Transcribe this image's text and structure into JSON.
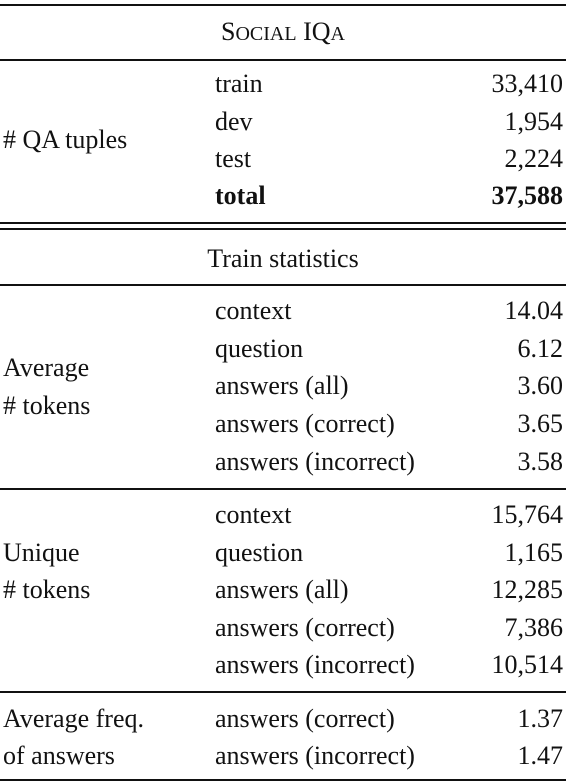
{
  "header": {
    "title_parts": [
      "S",
      "OCIAL",
      " IQ",
      "A"
    ]
  },
  "qa_tuples": {
    "label": "# QA tuples",
    "rows": [
      {
        "split": "train",
        "value": "33,410"
      },
      {
        "split": "dev",
        "value": "1,954"
      },
      {
        "split": "test",
        "value": "2,224"
      },
      {
        "split": "total",
        "value": "37,588"
      }
    ]
  },
  "train_statistics": {
    "heading": "Train statistics"
  },
  "average_tokens": {
    "label_line1": "Average",
    "label_line2": "# tokens",
    "rows": [
      {
        "field": "context",
        "value": "14.04"
      },
      {
        "field": "question",
        "value": "6.12"
      },
      {
        "field": "answers (all)",
        "value": "3.60"
      },
      {
        "field": "answers (correct)",
        "value": "3.65"
      },
      {
        "field": "answers (incorrect)",
        "value": "3.58"
      }
    ]
  },
  "unique_tokens": {
    "label_line1": "Unique",
    "label_line2": "# tokens",
    "rows": [
      {
        "field": "context",
        "value": "15,764"
      },
      {
        "field": "question",
        "value": "1,165"
      },
      {
        "field": "answers (all)",
        "value": "12,285"
      },
      {
        "field": "answers (correct)",
        "value": "7,386"
      },
      {
        "field": "answers (incorrect)",
        "value": "10,514"
      }
    ]
  },
  "average_freq": {
    "label_line1": "Average freq.",
    "label_line2": "of answers",
    "rows": [
      {
        "field": "answers (correct)",
        "value": "1.37"
      },
      {
        "field": "answers (incorrect)",
        "value": "1.47"
      }
    ]
  }
}
